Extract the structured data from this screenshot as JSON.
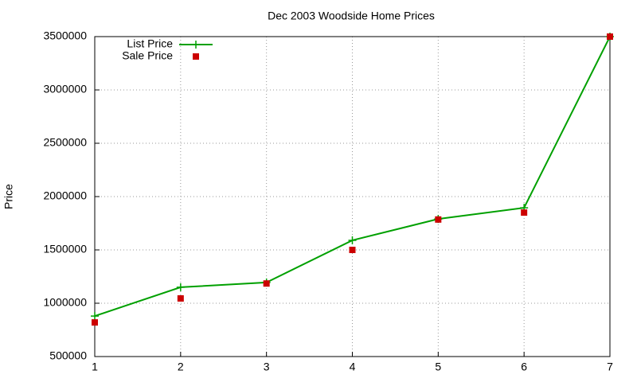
{
  "chart_data": {
    "type": "line",
    "title": "Dec 2003 Woodside Home Prices",
    "y_label": "Price",
    "x": [
      1,
      2,
      3,
      4,
      5,
      6,
      7
    ],
    "series": [
      {
        "name": "List Price",
        "color": "#00a000",
        "style": "linespoints",
        "values": [
          880000,
          1150000,
          1195000,
          1590000,
          1790000,
          1895000,
          3500000
        ]
      },
      {
        "name": "Sale Price",
        "color": "#cc0000",
        "style": "points",
        "values": [
          820000,
          1045000,
          1185000,
          1500000,
          1785000,
          1850000,
          3500000
        ]
      }
    ],
    "xlim": [
      1,
      7
    ],
    "xticks": [
      1,
      2,
      3,
      4,
      5,
      6,
      7
    ],
    "ylim": [
      500000,
      3500000
    ],
    "yticks": [
      500000,
      1000000,
      1500000,
      2000000,
      2500000,
      3000000,
      3500000
    ],
    "grid": true,
    "legend": "top-left"
  }
}
